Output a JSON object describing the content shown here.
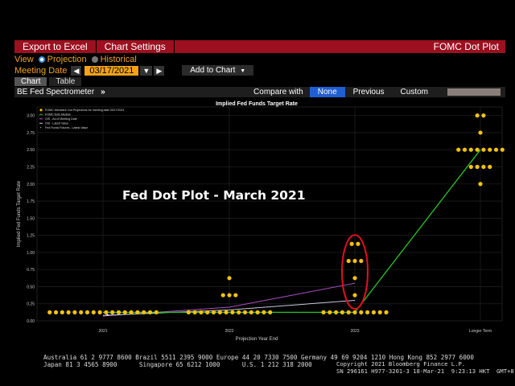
{
  "toolbar": {
    "export_label": "Export to Excel",
    "settings_label": "Chart Settings",
    "title": "FOMC Dot Plot"
  },
  "view": {
    "label": "View",
    "options": [
      "Projection",
      "Historical"
    ],
    "selected": "Projection"
  },
  "meeting": {
    "label": "Meeting Date",
    "date": "03/17/2021",
    "add_chart": "Add to Chart"
  },
  "tabs": [
    "Chart",
    "Table"
  ],
  "spectrometer": {
    "label": "BE Fed Spectrometer",
    "compare_label": "Compare with",
    "options": [
      "None",
      "Previous",
      "Custom"
    ],
    "selected": "None"
  },
  "colors": {
    "toolbar": "#9c1020",
    "accent": "#f3a21a",
    "dot": "#f2c20f",
    "median": "#27c427",
    "ois_as_of": "#b050c8",
    "ois_latest": "#c8c8e0",
    "futures": "#ffffff",
    "highlight": "#e01020"
  },
  "chart_data": {
    "type": "scatter",
    "title": "Implied Fed Funds Target Rate",
    "overlay_title": "Fed Dot Plot - March 2021",
    "xlabel": "Projection Year End",
    "ylabel": "Implied Fed Funds Target Rate",
    "ylim": [
      0,
      3.125
    ],
    "yticks": [
      "0.00",
      "0.25",
      "0.50",
      "0.75",
      "1.00",
      "1.25",
      "1.50",
      "1.75",
      "2.00",
      "2.25",
      "2.50",
      "2.75",
      "3.00"
    ],
    "categories": [
      "2021",
      "2022",
      "2023",
      "Longer Term"
    ],
    "legend": [
      "FOMC Members' Dot Projections for meeting date 03/17/2021",
      "FOMC Dots Median",
      "OIS - As of Meeting Date",
      "OIS - Latest Value",
      "Fed Funds Futures - Latest Value"
    ],
    "dots": [
      {
        "x": "2021",
        "y": 0.125,
        "count": 18
      },
      {
        "x": "2022",
        "y": 0.125,
        "count": 14
      },
      {
        "x": "2022",
        "y": 0.375,
        "count": 3
      },
      {
        "x": "2022",
        "y": 0.625,
        "count": 1
      },
      {
        "x": "2023",
        "y": 0.125,
        "count": 11
      },
      {
        "x": "2023",
        "y": 0.375,
        "count": 1
      },
      {
        "x": "2023",
        "y": 0.625,
        "count": 1
      },
      {
        "x": "2023",
        "y": 0.875,
        "count": 3
      },
      {
        "x": "2023",
        "y": 1.125,
        "count": 2
      },
      {
        "x": "Longer Term",
        "y": 2.0,
        "count": 1
      },
      {
        "x": "Longer Term",
        "y": 2.25,
        "count": 4
      },
      {
        "x": "Longer Term",
        "y": 2.5,
        "count": 8
      },
      {
        "x": "Longer Term",
        "y": 2.75,
        "count": 1
      },
      {
        "x": "Longer Term",
        "y": 3.0,
        "count": 2
      }
    ],
    "median": [
      {
        "x": "2021",
        "y": 0.125
      },
      {
        "x": "2022",
        "y": 0.125
      },
      {
        "x": "2023",
        "y": 0.125
      },
      {
        "x": "Longer Term",
        "y": 2.5
      }
    ],
    "ois_as_of": [
      {
        "x": "2021",
        "y": 0.07
      },
      {
        "x": "2022",
        "y": 0.2
      },
      {
        "x": "2023",
        "y": 0.55
      }
    ],
    "ois_latest": [
      {
        "x": "2021",
        "y": 0.08
      },
      {
        "x": "2022",
        "y": 0.16
      },
      {
        "x": "2023",
        "y": 0.3
      }
    ],
    "futures": [
      {
        "x": "2021",
        "y": 0.09
      }
    ]
  },
  "footer": {
    "line1": "Australia 61 2 9777 8600 Brazil 5511 2395 9000 Europe 44 20 7330 7500 Germany 49 69 9204 1210 Hong Kong 852 2977 6000",
    "line2": "Japan 81 3 4565 8900      Singapore 65 6212 1000      U.S. 1 212 318 2000",
    "copyright": "Copyright 2021 Bloomberg Finance L.P.",
    "sn": "SN 296161 H977-3201-3 18-Mar-21  9:23:13 HKT  GMT+8:00"
  }
}
